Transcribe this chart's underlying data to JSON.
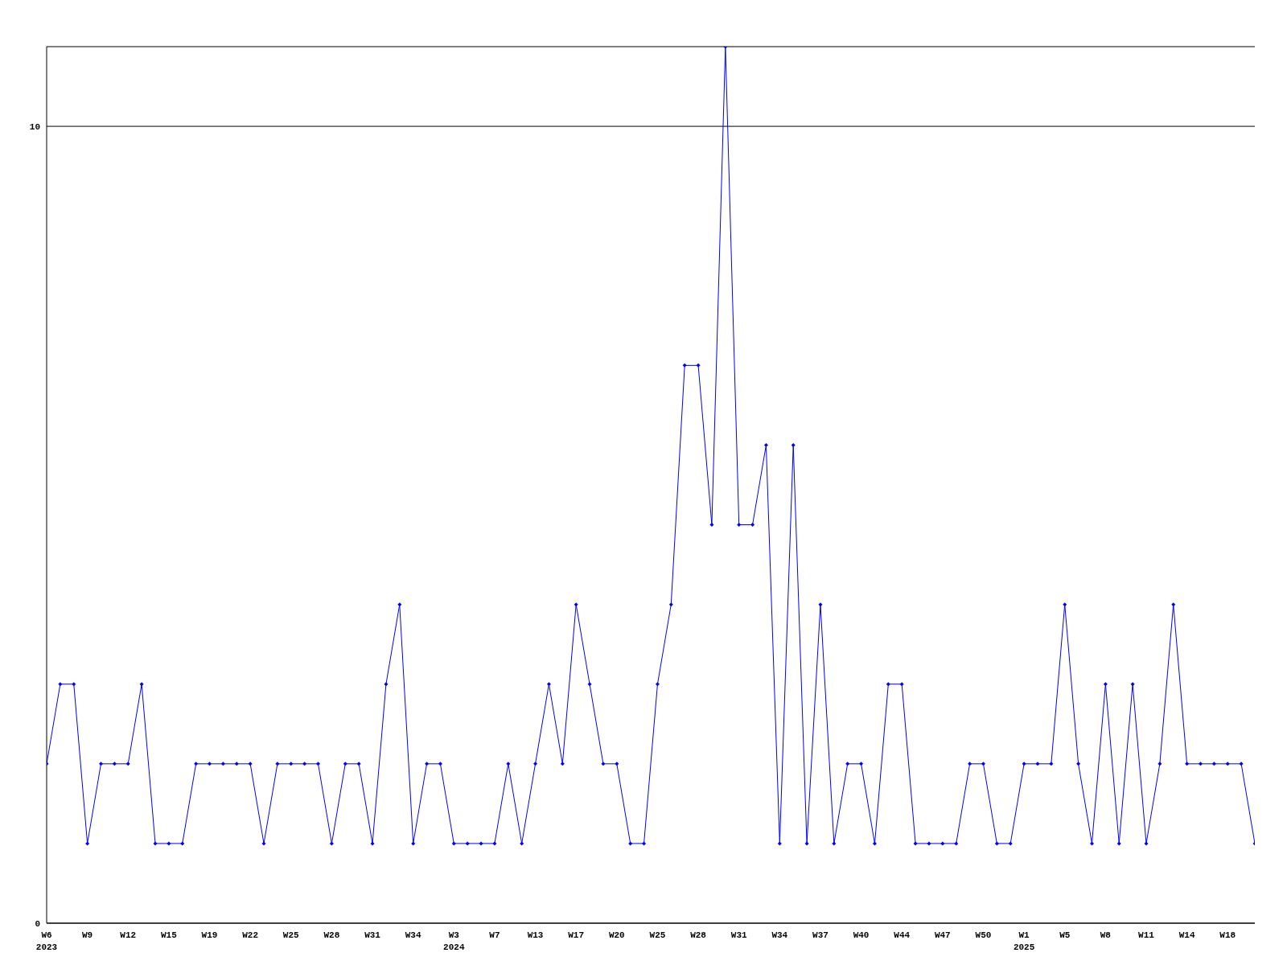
{
  "chart_data": {
    "type": "line",
    "categories": [
      "W6 2023",
      null,
      null,
      "W9",
      null,
      null,
      "W12",
      null,
      null,
      "W15",
      null,
      null,
      "W19",
      null,
      null,
      "W22",
      null,
      null,
      "W25",
      null,
      null,
      "W28",
      null,
      null,
      "W31",
      null,
      null,
      "W34",
      null,
      null,
      "W3 2024",
      null,
      null,
      "W7",
      null,
      null,
      "W13",
      null,
      null,
      "W17",
      null,
      null,
      "W20",
      null,
      null,
      "W25",
      null,
      null,
      "W28",
      null,
      null,
      "W31",
      null,
      null,
      "W34",
      null,
      null,
      "W37",
      null,
      null,
      "W40",
      null,
      null,
      "W44",
      null,
      null,
      "W47",
      null,
      null,
      "W50",
      null,
      null,
      "W1 2025",
      null,
      null,
      "W5",
      null,
      null,
      "W8",
      null,
      null,
      "W11",
      null,
      null,
      "W14",
      null,
      null,
      "W18",
      null,
      null
    ],
    "series": [
      {
        "color": "#0000ff",
        "values": [
          2,
          3,
          3,
          1,
          2,
          2,
          2,
          3,
          1,
          1,
          1,
          2,
          2,
          2,
          2,
          2,
          1,
          2,
          2,
          2,
          2,
          1,
          2,
          2,
          1,
          3,
          4,
          1,
          2,
          2,
          1,
          1,
          1,
          1,
          2,
          1,
          2,
          3,
          2,
          4,
          3,
          2,
          2,
          1,
          1,
          3,
          4,
          7,
          7,
          5,
          11,
          5,
          5,
          6,
          1,
          6,
          1,
          4,
          1,
          2,
          2,
          1,
          3,
          3,
          1,
          1,
          1,
          1,
          2,
          2,
          1,
          1,
          2,
          2,
          2,
          4,
          2,
          1,
          3,
          1,
          3,
          1,
          2,
          4,
          2,
          2,
          2,
          2,
          2,
          1
        ]
      }
    ],
    "ylim": [
      0,
      11
    ],
    "yticks": [
      0,
      10
    ],
    "grid": "y",
    "legend": false,
    "marker": "diamond",
    "line_style": "solid"
  }
}
